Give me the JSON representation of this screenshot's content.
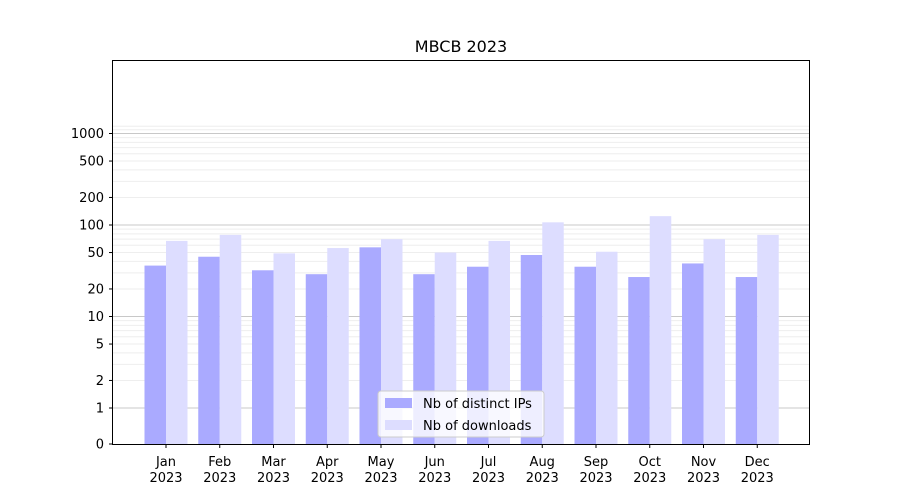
{
  "chart_data": {
    "type": "bar",
    "title": "MBCB 2023",
    "xlabel": "",
    "ylabel": "",
    "scale": "symlog",
    "ylim": [
      0,
      1200
    ],
    "grid": true,
    "legend_placement": "bottom-center",
    "categories": [
      [
        "Jan",
        "2023"
      ],
      [
        "Feb",
        "2023"
      ],
      [
        "Mar",
        "2023"
      ],
      [
        "Apr",
        "2023"
      ],
      [
        "May",
        "2023"
      ],
      [
        "Jun",
        "2023"
      ],
      [
        "Jul",
        "2023"
      ],
      [
        "Aug",
        "2023"
      ],
      [
        "Sep",
        "2023"
      ],
      [
        "Oct",
        "2023"
      ],
      [
        "Nov",
        "2023"
      ],
      [
        "Dec",
        "2023"
      ]
    ],
    "y_ticks": [
      {
        "value": 0,
        "label": "0"
      },
      {
        "value": 1,
        "label": "1"
      },
      {
        "value": 2,
        "label": "2"
      },
      {
        "value": 5,
        "label": "5"
      },
      {
        "value": 10,
        "label": "10"
      },
      {
        "value": 20,
        "label": "20"
      },
      {
        "value": 50,
        "label": "50"
      },
      {
        "value": 100,
        "label": "100"
      },
      {
        "value": 200,
        "label": "200"
      },
      {
        "value": 500,
        "label": "500"
      },
      {
        "value": 1000,
        "label": "1000"
      }
    ],
    "series": [
      {
        "name": "Nb of distinct IPs",
        "color": "#aaaaff",
        "values": [
          36,
          45,
          32,
          29,
          57,
          29,
          35,
          47,
          35,
          27,
          38,
          27
        ]
      },
      {
        "name": "Nb of downloads",
        "color": "#ddddff",
        "values": [
          67,
          78,
          49,
          56,
          70,
          50,
          67,
          107,
          51,
          125,
          70,
          78
        ]
      }
    ]
  }
}
